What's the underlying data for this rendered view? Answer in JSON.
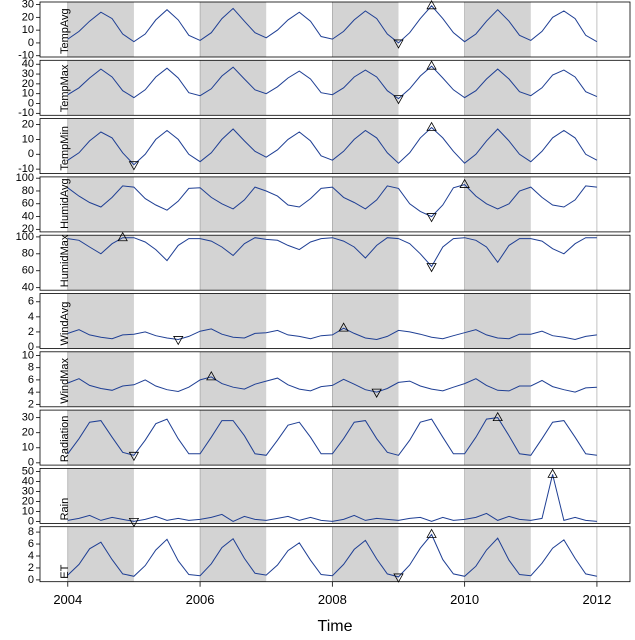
{
  "chart_data": {
    "type": "line",
    "xlabel": "Time",
    "color": "#1f3f94",
    "xlim": [
      2003.58,
      2012.5
    ],
    "xticks": [
      2004,
      2006,
      2008,
      2010,
      2012
    ],
    "x": [
      2004,
      2004.17,
      2004.33,
      2004.5,
      2004.67,
      2004.83,
      2005,
      2005.17,
      2005.33,
      2005.5,
      2005.67,
      2005.83,
      2006,
      2006.17,
      2006.33,
      2006.5,
      2006.67,
      2006.83,
      2007,
      2007.17,
      2007.33,
      2007.5,
      2007.67,
      2007.83,
      2008,
      2008.17,
      2008.33,
      2008.5,
      2008.67,
      2008.83,
      2009,
      2009.17,
      2009.33,
      2009.5,
      2009.67,
      2009.83,
      2010,
      2010.17,
      2010.33,
      2010.5,
      2010.67,
      2010.83,
      2011,
      2011.17,
      2011.33,
      2011.5,
      2011.67,
      2011.83,
      2012
    ],
    "panels": [
      {
        "name": "TempAvg",
        "ylim": [
          -11,
          32
        ],
        "yticks": [
          -10,
          0,
          10,
          20,
          30
        ],
        "values": [
          3,
          9,
          17,
          24,
          19,
          7,
          1,
          7,
          18,
          26,
          18,
          6,
          2,
          8,
          19,
          27,
          17,
          8,
          4,
          10,
          18,
          24,
          17,
          5,
          3,
          9,
          18,
          25,
          19,
          7,
          0,
          8,
          19,
          29,
          19,
          8,
          1,
          7,
          17,
          26,
          17,
          6,
          2,
          9,
          20,
          25,
          19,
          6,
          1
        ]
      },
      {
        "name": "TempMax",
        "ylim": [
          -12,
          44
        ],
        "yticks": [
          -10,
          0,
          10,
          20,
          30,
          40
        ],
        "values": [
          9,
          16,
          26,
          35,
          27,
          13,
          6,
          14,
          27,
          36,
          26,
          11,
          8,
          15,
          28,
          37,
          25,
          14,
          10,
          17,
          26,
          33,
          25,
          11,
          9,
          16,
          27,
          34,
          27,
          13,
          5,
          15,
          28,
          38,
          26,
          14,
          6,
          13,
          25,
          35,
          25,
          12,
          8,
          16,
          29,
          34,
          27,
          12,
          7
        ]
      },
      {
        "name": "TempMin",
        "ylim": [
          -13,
          24
        ],
        "yticks": [
          -10,
          0,
          10,
          20
        ],
        "values": [
          -4,
          1,
          9,
          15,
          11,
          1,
          -7,
          0,
          10,
          16,
          10,
          0,
          -5,
          1,
          10,
          17,
          9,
          2,
          -2,
          3,
          10,
          15,
          9,
          -1,
          -4,
          2,
          10,
          16,
          11,
          1,
          -6,
          1,
          11,
          18,
          11,
          2,
          -6,
          0,
          9,
          17,
          9,
          0,
          -5,
          2,
          11,
          16,
          11,
          0,
          -4
        ]
      },
      {
        "name": "HumidAvg",
        "ylim": [
          16,
          102
        ],
        "yticks": [
          20,
          40,
          60,
          80,
          100
        ],
        "values": [
          85,
          72,
          62,
          55,
          70,
          88,
          86,
          68,
          58,
          50,
          64,
          84,
          85,
          70,
          60,
          52,
          66,
          86,
          80,
          72,
          58,
          55,
          68,
          84,
          86,
          70,
          62,
          52,
          66,
          88,
          84,
          60,
          48,
          40,
          58,
          85,
          90,
          72,
          60,
          52,
          60,
          80,
          86,
          70,
          58,
          55,
          66,
          88,
          86
        ]
      },
      {
        "name": "HumidMax",
        "ylim": [
          37,
          102
        ],
        "yticks": [
          40,
          60,
          80,
          100
        ],
        "values": [
          98,
          96,
          88,
          80,
          92,
          99,
          99,
          94,
          85,
          72,
          90,
          98,
          98,
          95,
          88,
          78,
          92,
          99,
          97,
          96,
          90,
          85,
          94,
          98,
          99,
          95,
          88,
          75,
          90,
          99,
          98,
          92,
          80,
          65,
          88,
          98,
          99,
          96,
          88,
          70,
          90,
          98,
          98,
          95,
          86,
          80,
          92,
          99,
          99
        ]
      },
      {
        "name": "WindAvg",
        "ylim": [
          -0.2,
          7.1
        ],
        "yticks": [
          0,
          2,
          4,
          6
        ],
        "values": [
          1.8,
          2.3,
          1.6,
          1.3,
          1.1,
          1.6,
          1.7,
          2.0,
          1.5,
          1.2,
          1.0,
          1.4,
          2.1,
          2.4,
          1.7,
          1.3,
          1.2,
          1.8,
          1.9,
          2.2,
          1.6,
          1.4,
          1.1,
          1.5,
          1.6,
          2.5,
          1.8,
          1.2,
          1.0,
          1.4,
          2.2,
          2.0,
          1.7,
          1.3,
          1.1,
          1.5,
          1.9,
          2.3,
          1.6,
          1.2,
          1.1,
          1.7,
          1.7,
          2.1,
          1.5,
          1.3,
          1.0,
          1.4,
          1.6
        ]
      },
      {
        "name": "WindMax",
        "ylim": [
          1.6,
          10.6
        ],
        "yticks": [
          2,
          4,
          6,
          8,
          10
        ],
        "values": [
          5.5,
          6.2,
          5.1,
          4.6,
          4.3,
          5.0,
          5.2,
          6.0,
          5.0,
          4.4,
          4.1,
          4.8,
          6.0,
          6.5,
          5.4,
          4.8,
          4.5,
          5.3,
          5.8,
          6.3,
          5.2,
          4.5,
          4.2,
          4.9,
          5.1,
          6.1,
          5.3,
          4.4,
          4.0,
          4.6,
          5.6,
          5.8,
          5.0,
          4.5,
          4.2,
          4.8,
          5.4,
          6.2,
          5.1,
          4.3,
          4.2,
          5.0,
          5.0,
          5.9,
          4.9,
          4.4,
          4.0,
          4.7,
          4.8
        ]
      },
      {
        "name": "Radiation",
        "ylim": [
          -1.5,
          35
        ],
        "yticks": [
          0,
          10,
          20,
          30
        ],
        "values": [
          6,
          16,
          27,
          28,
          17,
          7,
          5,
          15,
          26,
          29,
          16,
          6,
          6,
          17,
          28,
          28,
          18,
          6,
          5,
          15,
          25,
          27,
          17,
          6,
          6,
          16,
          27,
          28,
          16,
          7,
          5,
          15,
          27,
          29,
          17,
          6,
          6,
          17,
          29,
          30,
          18,
          6,
          5,
          16,
          27,
          28,
          17,
          6,
          5
        ]
      },
      {
        "name": "Rain",
        "ylim": [
          -2,
          53
        ],
        "yticks": [
          0,
          10,
          20,
          30,
          40,
          50
        ],
        "values": [
          1,
          3,
          6,
          1,
          4,
          2,
          0,
          2,
          5,
          1,
          3,
          1,
          2,
          4,
          7,
          0,
          5,
          2,
          1,
          3,
          5,
          1,
          4,
          1,
          0,
          2,
          6,
          1,
          3,
          2,
          1,
          3,
          4,
          0,
          4,
          1,
          2,
          4,
          8,
          1,
          5,
          2,
          1,
          3,
          47,
          1,
          4,
          1,
          0
        ]
      },
      {
        "name": "ET",
        "ylim": [
          -0.3,
          8.9
        ],
        "yticks": [
          0,
          2,
          4,
          6,
          8
        ],
        "values": [
          0.8,
          2.6,
          5.2,
          6.3,
          3.4,
          1.0,
          0.6,
          2.4,
          5.0,
          6.8,
          3.2,
          0.9,
          0.7,
          2.7,
          5.4,
          6.9,
          3.6,
          1.1,
          0.8,
          2.5,
          4.9,
          6.2,
          3.3,
          0.9,
          0.7,
          2.6,
          5.1,
          6.6,
          3.5,
          1.0,
          0.5,
          2.5,
          5.3,
          7.6,
          3.4,
          1.0,
          0.6,
          2.3,
          5.0,
          7.0,
          3.3,
          0.9,
          0.7,
          2.8,
          5.3,
          6.7,
          3.6,
          1.0,
          0.6
        ]
      }
    ]
  }
}
